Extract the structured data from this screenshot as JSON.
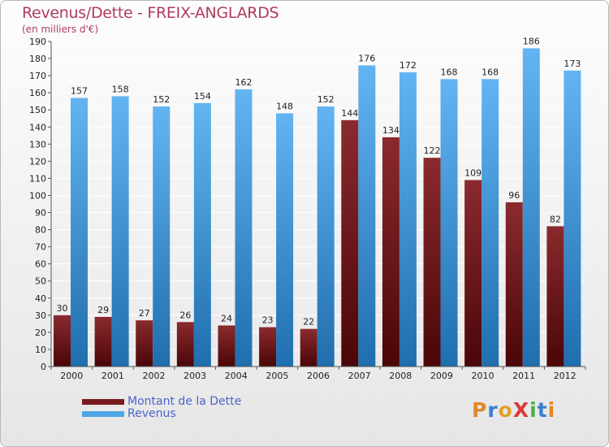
{
  "chart_data": {
    "type": "bar",
    "title": "Revenus/Dette - FREIX-ANGLARDS",
    "subtitle": "(en milliers d'€)",
    "categories": [
      "2000",
      "2001",
      "2002",
      "2003",
      "2004",
      "2005",
      "2006",
      "2007",
      "2008",
      "2009",
      "2010",
      "2011",
      "2012"
    ],
    "series": [
      {
        "name": "Montant de la Dette",
        "color": "#7a1a20",
        "values": [
          30,
          29,
          27,
          26,
          24,
          23,
          22,
          144,
          134,
          122,
          109,
          96,
          82
        ]
      },
      {
        "name": "Revenus",
        "color": "#4ea6e6",
        "values": [
          157,
          158,
          152,
          154,
          162,
          148,
          152,
          176,
          172,
          168,
          168,
          186,
          173
        ]
      }
    ],
    "ylim": [
      0,
      190
    ],
    "ytick_step": 10,
    "grid": true,
    "legend_position": "bottom-left"
  },
  "logo": {
    "text": "ProXiti",
    "colors": [
      "#e0882a",
      "#3a7ed0",
      "#e0a030",
      "#d83a3a",
      "#4ab04a",
      "#3a7ed0",
      "#e0882a"
    ]
  }
}
